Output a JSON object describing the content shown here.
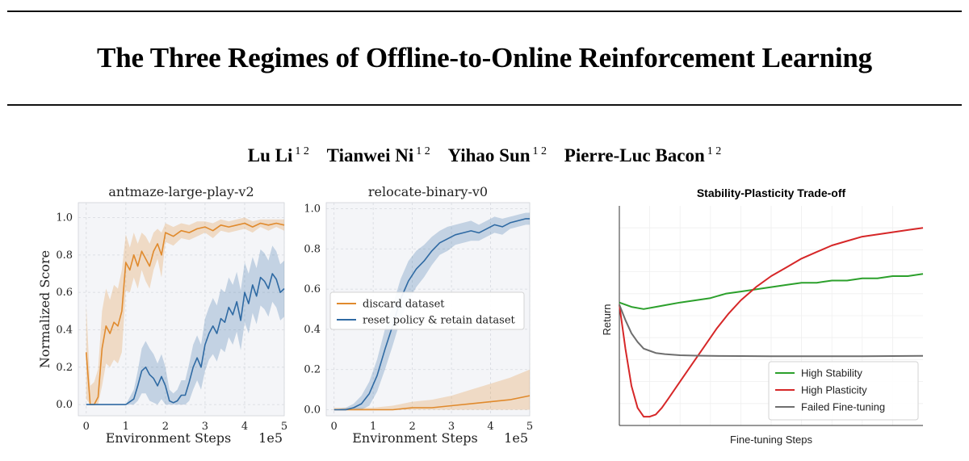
{
  "paper": {
    "title": "The Three Regimes of Offline-to-Online Reinforcement Learning",
    "authors": [
      {
        "name": "Lu Li",
        "affiliations": "1 2"
      },
      {
        "name": "Tianwei Ni",
        "affiliations": "1 2"
      },
      {
        "name": "Yihao Sun",
        "affiliations": "1 2"
      },
      {
        "name": "Pierre-Luc Bacon",
        "affiliations": "1 2"
      }
    ]
  },
  "colors": {
    "orange": "#e08a2d",
    "blue": "#2f6aa3",
    "green": "#2ca02c",
    "red": "#d62728",
    "gray": "#6e6e6e"
  },
  "chart_data": [
    {
      "type": "line",
      "title": "antmaze-large-play-v2",
      "xlabel": "Environment Steps",
      "x_scale_note": "1e5",
      "ylabel": "Normalized Score",
      "xlim": [
        -0.2,
        5.0
      ],
      "ylim": [
        -0.06,
        1.08
      ],
      "xticks": [
        "0",
        "1",
        "2",
        "3",
        "4",
        "5"
      ],
      "yticks": [
        "0.0",
        "0.2",
        "0.4",
        "0.6",
        "0.8",
        "1.0"
      ],
      "grid": true,
      "series": [
        {
          "name": "discard dataset",
          "color": "#e08a2d",
          "x": [
            0,
            0.1,
            0.2,
            0.3,
            0.4,
            0.5,
            0.6,
            0.7,
            0.8,
            0.9,
            1.0,
            1.1,
            1.2,
            1.3,
            1.4,
            1.5,
            1.6,
            1.7,
            1.8,
            1.9,
            2.0,
            2.2,
            2.4,
            2.6,
            2.8,
            3.0,
            3.2,
            3.4,
            3.6,
            3.8,
            4.0,
            4.2,
            4.4,
            4.6,
            4.8,
            5.0
          ],
          "y": [
            0.28,
            0.0,
            0.0,
            0.04,
            0.3,
            0.42,
            0.38,
            0.44,
            0.42,
            0.5,
            0.76,
            0.72,
            0.8,
            0.74,
            0.82,
            0.78,
            0.74,
            0.82,
            0.86,
            0.8,
            0.92,
            0.9,
            0.93,
            0.92,
            0.94,
            0.95,
            0.93,
            0.96,
            0.95,
            0.96,
            0.97,
            0.95,
            0.97,
            0.96,
            0.97,
            0.96
          ],
          "band": [
            0.25,
            0.1,
            0.12,
            0.15,
            0.2,
            0.2,
            0.18,
            0.2,
            0.2,
            0.22,
            0.15,
            0.12,
            0.12,
            0.12,
            0.1,
            0.12,
            0.12,
            0.1,
            0.08,
            0.12,
            0.05,
            0.05,
            0.04,
            0.04,
            0.04,
            0.03,
            0.04,
            0.03,
            0.03,
            0.03,
            0.03,
            0.03,
            0.02,
            0.03,
            0.02,
            0.03
          ]
        },
        {
          "name": "reset policy & retain dataset",
          "color": "#2f6aa3",
          "x": [
            0,
            0.2,
            0.4,
            0.6,
            0.8,
            1.0,
            1.2,
            1.3,
            1.4,
            1.5,
            1.6,
            1.7,
            1.8,
            1.9,
            2.0,
            2.1,
            2.2,
            2.3,
            2.4,
            2.5,
            2.6,
            2.7,
            2.8,
            2.9,
            3.0,
            3.1,
            3.2,
            3.3,
            3.4,
            3.5,
            3.6,
            3.7,
            3.8,
            3.9,
            4.0,
            4.1,
            4.2,
            4.3,
            4.4,
            4.5,
            4.6,
            4.7,
            4.8,
            4.9,
            5.0
          ],
          "y": [
            0,
            0,
            0,
            0,
            0,
            0,
            0.03,
            0.1,
            0.18,
            0.2,
            0.16,
            0.14,
            0.1,
            0.15,
            0.1,
            0.02,
            0.01,
            0.02,
            0.05,
            0.05,
            0.12,
            0.2,
            0.25,
            0.2,
            0.32,
            0.38,
            0.42,
            0.38,
            0.46,
            0.44,
            0.52,
            0.48,
            0.55,
            0.45,
            0.6,
            0.54,
            0.64,
            0.58,
            0.68,
            0.66,
            0.62,
            0.7,
            0.67,
            0.6,
            0.62
          ],
          "band": [
            0,
            0,
            0,
            0,
            0,
            0,
            0.05,
            0.08,
            0.12,
            0.14,
            0.14,
            0.13,
            0.12,
            0.12,
            0.1,
            0.06,
            0.05,
            0.06,
            0.08,
            0.08,
            0.1,
            0.12,
            0.12,
            0.12,
            0.14,
            0.14,
            0.15,
            0.15,
            0.16,
            0.16,
            0.16,
            0.16,
            0.16,
            0.16,
            0.16,
            0.16,
            0.15,
            0.15,
            0.15,
            0.15,
            0.15,
            0.15,
            0.15,
            0.15,
            0.15
          ]
        }
      ]
    },
    {
      "type": "line",
      "title": "relocate-binary-v0",
      "xlabel": "Environment Steps",
      "x_scale_note": "1e5",
      "xlim": [
        -0.2,
        5.0
      ],
      "ylim": [
        -0.03,
        1.03
      ],
      "xticks": [
        "0",
        "1",
        "2",
        "3",
        "4",
        "5"
      ],
      "yticks": [
        "0.0",
        "0.2",
        "0.4",
        "0.6",
        "0.8",
        "1.0"
      ],
      "grid": true,
      "legend": "center-right",
      "series": [
        {
          "name": "discard dataset",
          "color": "#e08a2d",
          "x": [
            0,
            0.5,
            1.0,
            1.5,
            2.0,
            2.5,
            3.0,
            3.5,
            4.0,
            4.5,
            5.0
          ],
          "y": [
            0.0,
            0.0,
            0.0,
            0.0,
            0.01,
            0.01,
            0.02,
            0.03,
            0.04,
            0.05,
            0.07
          ],
          "band": [
            0.01,
            0.01,
            0.01,
            0.02,
            0.03,
            0.04,
            0.05,
            0.07,
            0.09,
            0.11,
            0.13
          ]
        },
        {
          "name": "reset policy & retain dataset",
          "color": "#2f6aa3",
          "x": [
            0,
            0.3,
            0.5,
            0.7,
            0.9,
            1.1,
            1.3,
            1.5,
            1.7,
            1.9,
            2.1,
            2.3,
            2.5,
            2.7,
            2.9,
            3.1,
            3.3,
            3.5,
            3.7,
            3.9,
            4.1,
            4.3,
            4.5,
            4.7,
            4.9,
            5.0
          ],
          "y": [
            0.0,
            0.0,
            0.01,
            0.03,
            0.08,
            0.17,
            0.3,
            0.42,
            0.55,
            0.64,
            0.7,
            0.74,
            0.79,
            0.83,
            0.85,
            0.87,
            0.88,
            0.89,
            0.88,
            0.9,
            0.92,
            0.91,
            0.93,
            0.94,
            0.95,
            0.95
          ],
          "band": [
            0.0,
            0.01,
            0.02,
            0.04,
            0.06,
            0.08,
            0.1,
            0.1,
            0.1,
            0.1,
            0.09,
            0.08,
            0.07,
            0.06,
            0.06,
            0.05,
            0.05,
            0.05,
            0.04,
            0.04,
            0.04,
            0.04,
            0.03,
            0.03,
            0.03,
            0.03
          ]
        }
      ]
    },
    {
      "type": "line",
      "title": "Stability-Plasticity Trade-off",
      "xlabel": "Fine-tuning Steps",
      "ylabel": "Return",
      "xlim": [
        0,
        100
      ],
      "ylim": [
        0,
        100
      ],
      "xticks": [],
      "yticks": [],
      "grid": true,
      "legend": "lower-right",
      "series": [
        {
          "name": "High Stability",
          "color": "#2ca02c",
          "x": [
            0,
            4,
            8,
            12,
            16,
            20,
            25,
            30,
            35,
            40,
            45,
            50,
            55,
            60,
            65,
            70,
            75,
            80,
            85,
            90,
            95,
            100
          ],
          "y": [
            56,
            54,
            53,
            54,
            55,
            56,
            57,
            58,
            60,
            61,
            62,
            63,
            64,
            65,
            65,
            66,
            66,
            67,
            67,
            68,
            68,
            69
          ]
        },
        {
          "name": "High Plasticity",
          "color": "#d62728",
          "x": [
            0,
            2,
            4,
            6,
            8,
            10,
            12,
            14,
            16,
            20,
            24,
            28,
            32,
            36,
            40,
            45,
            50,
            55,
            60,
            65,
            70,
            75,
            80,
            85,
            90,
            95,
            100
          ],
          "y": [
            55,
            35,
            18,
            8,
            4,
            4,
            5,
            8,
            12,
            20,
            28,
            36,
            44,
            51,
            57,
            63,
            68,
            72,
            76,
            79,
            82,
            84,
            86,
            87,
            88,
            89,
            90
          ]
        },
        {
          "name": "Failed Fine-tuning",
          "color": "#6e6e6e",
          "x": [
            0,
            2,
            4,
            6,
            8,
            10,
            12,
            15,
            20,
            25,
            30,
            40,
            50,
            60,
            70,
            80,
            90,
            100
          ],
          "y": [
            55,
            48,
            42,
            38,
            35,
            34,
            33,
            32.5,
            32,
            31.8,
            31.7,
            31.6,
            31.5,
            31.5,
            31.5,
            31.5,
            31.6,
            31.7
          ]
        }
      ]
    }
  ]
}
